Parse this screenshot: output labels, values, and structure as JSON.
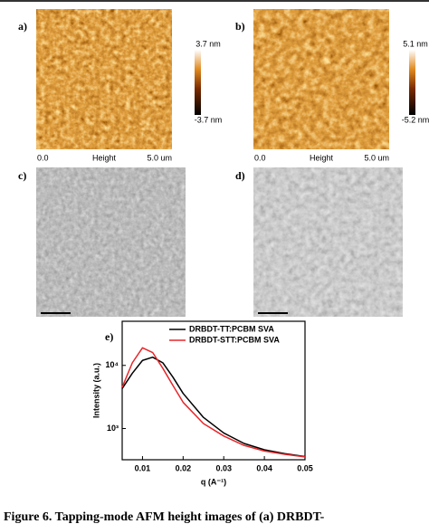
{
  "figure": {
    "panels": [
      {
        "label": "a)",
        "min_label": "-3.7 nm",
        "max_label": "3.7 nm",
        "x_start": "0.0",
        "channel": "Height",
        "x_end": "5.0 um"
      },
      {
        "label": "b)",
        "min_label": "-5.2 nm",
        "max_label": "5.1 nm",
        "x_start": "0.0",
        "channel": "Height",
        "x_end": "5.0 um"
      },
      {
        "label": "c)"
      },
      {
        "label": "d)"
      },
      {
        "label": "e)"
      }
    ]
  },
  "chart_data": {
    "type": "line",
    "xlabel": "q (A⁻¹)",
    "ylabel": "Intensity (a.u.)",
    "x": [
      0.005,
      0.0075,
      0.01,
      0.0125,
      0.015,
      0.0175,
      0.02,
      0.025,
      0.03,
      0.035,
      0.04,
      0.045,
      0.05
    ],
    "series": [
      {
        "name": "DRBDT-TT:PCBM SVA",
        "color": "#000000",
        "values": [
          4300,
          7500,
          12000,
          13500,
          11000,
          6500,
          3600,
          1500,
          850,
          580,
          460,
          400,
          360
        ]
      },
      {
        "name": "DRBDT-STT:PCBM SVA",
        "color": "#e8262a",
        "values": [
          4500,
          11000,
          19000,
          16000,
          9000,
          4800,
          2600,
          1200,
          760,
          540,
          440,
          390,
          355
        ]
      }
    ],
    "xlim": [
      0.005,
      0.05
    ],
    "xticks": [
      0.01,
      0.02,
      0.03,
      0.04,
      0.05
    ],
    "ylim": [
      320,
      50000
    ],
    "yscale": "log",
    "yticks": [
      {
        "value": 1000,
        "label": "10³"
      },
      {
        "value": 10000,
        "label": "10⁴"
      }
    ],
    "legend": "upper right"
  },
  "caption": "Figure 6. Tapping-mode AFM height images of (a) DRBDT-"
}
